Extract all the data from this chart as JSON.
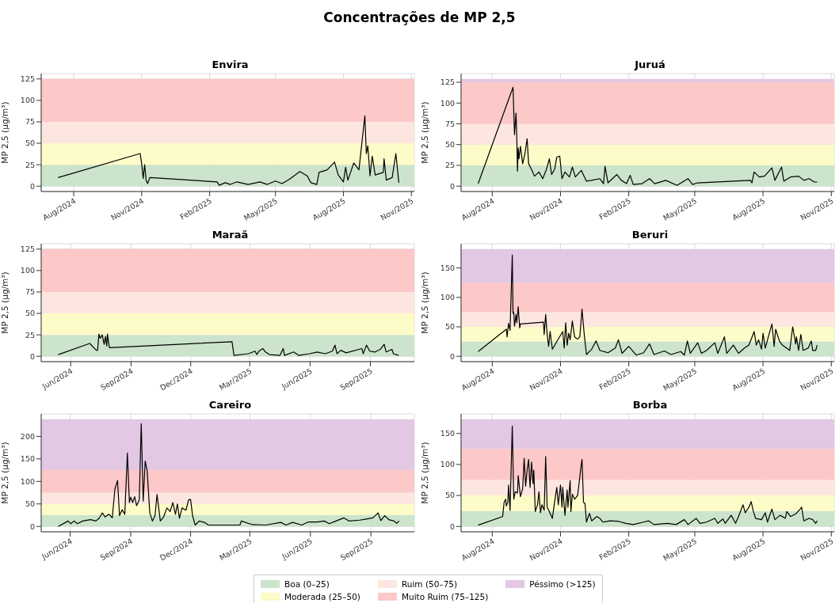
{
  "chart_data": [
    {
      "type": "other",
      "title": "Concentrações de MP 2,5"
    },
    {
      "type": "line",
      "title": "Envira",
      "ylabel": "MP 2,5 (µg/m³)",
      "color": "#000000",
      "grid": true,
      "x": [
        "2024-07-11",
        "2024-10-30",
        "2024-11-01",
        "2024-11-03",
        "2024-11-05",
        "2024-11-07",
        "2024-11-09",
        "2024-11-12",
        "2025-02-11",
        "2025-02-14",
        "2025-02-22",
        "2025-03-01",
        "2025-03-10",
        "2025-03-25",
        "2025-04-10",
        "2025-04-20",
        "2025-05-01",
        "2025-05-10",
        "2025-05-20",
        "2025-06-03",
        "2025-06-13",
        "2025-06-18",
        "2025-06-26",
        "2025-06-29",
        "2025-07-10",
        "2025-07-20",
        "2025-07-25",
        "2025-08-01",
        "2025-08-04",
        "2025-08-07",
        "2025-08-15",
        "2025-08-22",
        "2025-08-30",
        "2025-09-01",
        "2025-09-03",
        "2025-09-06",
        "2025-09-09",
        "2025-09-13",
        "2025-09-24",
        "2025-09-25",
        "2025-09-28",
        "2025-10-06",
        "2025-10-11",
        "2025-10-15"
      ],
      "values": [
        10,
        38,
        26,
        9,
        25,
        7,
        3,
        10,
        5,
        1,
        4,
        2,
        5,
        2,
        5,
        2,
        6,
        3,
        8,
        17,
        12,
        4,
        2,
        16,
        19,
        28,
        13,
        5,
        22,
        7,
        27,
        19,
        82,
        38,
        47,
        12,
        35,
        13,
        16,
        32,
        7,
        10,
        38,
        4
      ],
      "xlim": [
        "2024-06-18",
        "2025-11-05"
      ],
      "xticks": [
        {
          "value": "2024-08-01",
          "label": "Aug/2024"
        },
        {
          "value": "2024-11-01",
          "label": "Nov/2024"
        },
        {
          "value": "2025-02-01",
          "label": "Feb/2025"
        },
        {
          "value": "2025-05-01",
          "label": "May/2025"
        },
        {
          "value": "2025-08-01",
          "label": "Aug/2025"
        },
        {
          "value": "2025-11-01",
          "label": "Nov/2025"
        }
      ],
      "ylim": [
        -6.25,
        131.25
      ],
      "yticks": [
        0,
        25,
        50,
        75,
        100,
        125
      ],
      "bands": [
        {
          "axis": "y",
          "from": 0,
          "to": 25,
          "color": "#cbe4cb"
        },
        {
          "axis": "y",
          "from": 25,
          "to": 50,
          "color": "#fdfbc8"
        },
        {
          "axis": "y",
          "from": 50,
          "to": 75,
          "color": "#fde6e0"
        },
        {
          "axis": "y",
          "from": 75,
          "to": 125,
          "color": "#fdc8c8"
        }
      ]
    },
    {
      "type": "line",
      "title": "Juruá",
      "ylabel": "MP 2,5 (µg/m³)",
      "color": "#000000",
      "grid": true,
      "x": [
        "2024-07-13",
        "2024-08-29",
        "2024-08-31",
        "2024-09-02",
        "2024-09-03",
        "2024-09-04",
        "2024-09-05",
        "2024-09-06",
        "2024-09-08",
        "2024-09-11",
        "2024-09-14",
        "2024-09-17",
        "2024-09-19",
        "2024-09-23",
        "2024-09-27",
        "2024-10-03",
        "2024-10-08",
        "2024-10-13",
        "2024-10-17",
        "2024-10-20",
        "2024-10-24",
        "2024-10-27",
        "2024-10-31",
        "2024-11-03",
        "2024-11-07",
        "2024-11-13",
        "2024-11-17",
        "2024-11-21",
        "2024-11-29",
        "2024-12-06",
        "2024-12-13",
        "2024-12-24",
        "2024-12-29",
        "2024-12-31",
        "2025-01-04",
        "2025-01-16",
        "2025-01-22",
        "2025-01-29",
        "2025-02-03",
        "2025-02-07",
        "2025-02-19",
        "2025-03-01",
        "2025-03-08",
        "2025-03-23",
        "2025-04-07",
        "2025-04-22",
        "2025-04-28",
        "2025-05-05",
        "2025-07-15",
        "2025-07-17",
        "2025-07-20",
        "2025-07-27",
        "2025-08-03",
        "2025-08-13",
        "2025-08-17",
        "2025-08-26",
        "2025-08-29",
        "2025-09-07",
        "2025-09-18",
        "2025-09-25",
        "2025-10-02",
        "2025-10-09",
        "2025-10-13"
      ],
      "values": [
        3,
        119,
        62,
        88,
        62,
        18,
        46,
        33,
        48,
        27,
        39,
        57,
        27,
        20,
        12,
        17,
        9,
        20,
        33,
        14,
        20,
        35,
        36,
        9,
        17,
        11,
        23,
        11,
        19,
        6,
        7,
        9,
        3,
        24,
        4,
        14,
        7,
        3,
        13,
        2,
        3,
        9,
        3,
        7,
        1,
        9,
        2,
        4,
        7,
        4,
        17,
        11,
        12,
        22,
        7,
        23,
        6,
        11,
        12,
        7,
        9,
        5,
        5
      ],
      "xlim": [
        "2024-06-20",
        "2025-11-05"
      ],
      "xticks": [
        {
          "value": "2024-08-01",
          "label": "Aug/2024"
        },
        {
          "value": "2024-11-01",
          "label": "Nov/2024"
        },
        {
          "value": "2025-02-01",
          "label": "Feb/2025"
        },
        {
          "value": "2025-05-01",
          "label": "May/2025"
        },
        {
          "value": "2025-08-01",
          "label": "Aug/2025"
        },
        {
          "value": "2025-11-01",
          "label": "Nov/2025"
        }
      ],
      "ylim": [
        -6.45,
        135.45
      ],
      "yticks": [
        0,
        25,
        50,
        75,
        100,
        125
      ],
      "bands": [
        {
          "axis": "y",
          "from": 0,
          "to": 25,
          "color": "#cbe4cb"
        },
        {
          "axis": "y",
          "from": 25,
          "to": 50,
          "color": "#fdfbc8"
        },
        {
          "axis": "y",
          "from": 50,
          "to": 75,
          "color": "#fde6e0"
        },
        {
          "axis": "y",
          "from": 75,
          "to": 125,
          "color": "#fdc8c8"
        },
        {
          "axis": "y",
          "from": 125,
          "to": 129,
          "color": "#e2c8e2"
        }
      ]
    },
    {
      "type": "line",
      "title": "Maraã",
      "ylabel": "MP 2,5 (µg/m³)",
      "color": "#000000",
      "grid": true,
      "x": [
        "2024-05-13",
        "2024-06-30",
        "2024-07-10",
        "2024-07-12",
        "2024-07-14",
        "2024-07-16",
        "2024-07-19",
        "2024-07-22",
        "2024-07-24",
        "2024-07-26",
        "2024-07-27",
        "2024-07-30",
        "2025-02-02",
        "2025-02-05",
        "2025-02-27",
        "2025-03-09",
        "2025-03-12",
        "2025-03-15",
        "2025-03-21",
        "2025-03-25",
        "2025-03-31",
        "2025-04-16",
        "2025-04-21",
        "2025-04-23",
        "2025-05-07",
        "2025-05-15",
        "2025-05-31",
        "2025-06-12",
        "2025-06-24",
        "2025-07-05",
        "2025-07-09",
        "2025-07-12",
        "2025-07-18",
        "2025-07-26",
        "2025-08-19",
        "2025-08-21",
        "2025-08-26",
        "2025-08-31",
        "2025-09-08",
        "2025-09-16",
        "2025-09-22",
        "2025-09-25",
        "2025-10-04",
        "2025-10-06",
        "2025-10-14"
      ],
      "values": [
        2,
        15,
        7,
        7,
        26,
        21,
        25,
        14,
        23,
        12,
        26,
        10,
        17,
        1,
        3,
        6,
        2,
        6,
        9,
        5,
        2,
        1,
        9,
        1,
        5,
        1,
        3,
        5,
        3,
        6,
        13,
        3,
        7,
        4,
        9,
        3,
        13,
        6,
        5,
        8,
        14,
        5,
        8,
        3,
        1
      ],
      "xlim": [
        "2024-04-17",
        "2025-11-07"
      ],
      "xticks": [
        {
          "value": "2024-06-01",
          "label": "Jun/2024"
        },
        {
          "value": "2024-09-01",
          "label": "Sep/2024"
        },
        {
          "value": "2024-12-01",
          "label": "Dec/2024"
        },
        {
          "value": "2025-03-01",
          "label": "Mar/2025"
        },
        {
          "value": "2025-06-01",
          "label": "Jun/2025"
        },
        {
          "value": "2025-09-01",
          "label": "Sep/2025"
        }
      ],
      "ylim": [
        -6.25,
        131.25
      ],
      "yticks": [
        0,
        25,
        50,
        75,
        100,
        125
      ],
      "bands": [
        {
          "axis": "y",
          "from": 0,
          "to": 25,
          "color": "#cbe4cb"
        },
        {
          "axis": "y",
          "from": 25,
          "to": 50,
          "color": "#fdfbc8"
        },
        {
          "axis": "y",
          "from": 50,
          "to": 75,
          "color": "#fde6e0"
        },
        {
          "axis": "y",
          "from": 75,
          "to": 125,
          "color": "#fdc8c8"
        }
      ]
    },
    {
      "type": "line",
      "title": "Beruri",
      "ylabel": "MP 2,5 (µg/m³)",
      "color": "#000000",
      "grid": true,
      "x": [
        "2024-07-13",
        "2024-08-20",
        "2024-08-21",
        "2024-08-23",
        "2024-08-25",
        "2024-08-28",
        "2024-08-29",
        "2024-08-30",
        "2024-08-31",
        "2024-09-02",
        "2024-09-03",
        "2024-09-05",
        "2024-09-07",
        "2024-09-08",
        "2024-10-09",
        "2024-10-10",
        "2024-10-12",
        "2024-10-14",
        "2024-10-16",
        "2024-10-18",
        "2024-10-21",
        "2024-11-04",
        "2024-11-06",
        "2024-11-08",
        "2024-11-10",
        "2024-11-12",
        "2024-11-14",
        "2024-11-17",
        "2024-11-20",
        "2024-11-24",
        "2024-11-27",
        "2024-11-30",
        "2024-12-03",
        "2024-12-06",
        "2024-12-13",
        "2024-12-19",
        "2024-12-24",
        "2025-01-04",
        "2025-01-14",
        "2025-01-18",
        "2025-01-23",
        "2025-02-01",
        "2025-02-11",
        "2025-02-21",
        "2025-03-01",
        "2025-03-07",
        "2025-03-21",
        "2025-03-30",
        "2025-04-12",
        "2025-04-17",
        "2025-04-21",
        "2025-04-25",
        "2025-05-05",
        "2025-05-10",
        "2025-05-17",
        "2025-05-28",
        "2025-06-01",
        "2025-06-10",
        "2025-06-13",
        "2025-06-22",
        "2025-06-29",
        "2025-07-07",
        "2025-07-13",
        "2025-07-20",
        "2025-07-23",
        "2025-07-26",
        "2025-07-30",
        "2025-08-01",
        "2025-08-04",
        "2025-08-13",
        "2025-08-16",
        "2025-08-18",
        "2025-08-23",
        "2025-08-27",
        "2025-09-06",
        "2025-09-10",
        "2025-09-14",
        "2025-09-15",
        "2025-09-18",
        "2025-09-21",
        "2025-09-24",
        "2025-10-01",
        "2025-10-05",
        "2025-10-07",
        "2025-10-11",
        "2025-10-13"
      ],
      "values": [
        8,
        46,
        33,
        56,
        44,
        172,
        73,
        75,
        51,
        71,
        57,
        84,
        48,
        55,
        58,
        37,
        71,
        37,
        17,
        42,
        12,
        42,
        14,
        57,
        19,
        39,
        28,
        60,
        33,
        29,
        33,
        80,
        37,
        3,
        12,
        26,
        10,
        6,
        14,
        28,
        5,
        17,
        2,
        6,
        21,
        3,
        9,
        3,
        8,
        2,
        26,
        5,
        23,
        5,
        10,
        23,
        5,
        33,
        5,
        19,
        5,
        14,
        19,
        42,
        19,
        28,
        12,
        39,
        14,
        55,
        17,
        46,
        26,
        19,
        10,
        50,
        21,
        33,
        10,
        37,
        10,
        14,
        26,
        10,
        10,
        19
      ],
      "xlim": [
        "2024-06-20",
        "2025-11-05"
      ],
      "xticks": [
        {
          "value": "2024-08-01",
          "label": "Aug/2024"
        },
        {
          "value": "2024-11-01",
          "label": "Nov/2024"
        },
        {
          "value": "2025-02-01",
          "label": "Feb/2025"
        },
        {
          "value": "2025-05-01",
          "label": "May/2025"
        },
        {
          "value": "2025-08-01",
          "label": "Aug/2025"
        },
        {
          "value": "2025-11-01",
          "label": "Nov/2025"
        }
      ],
      "ylim": [
        -9.1,
        191.1
      ],
      "yticks": [
        0,
        50,
        100,
        150
      ],
      "bands": [
        {
          "axis": "y",
          "from": 0,
          "to": 25,
          "color": "#cbe4cb"
        },
        {
          "axis": "y",
          "from": 25,
          "to": 50,
          "color": "#fdfbc8"
        },
        {
          "axis": "y",
          "from": 50,
          "to": 75,
          "color": "#fde6e0"
        },
        {
          "axis": "y",
          "from": 75,
          "to": 125,
          "color": "#fdc8c8"
        },
        {
          "axis": "y",
          "from": 125,
          "to": 182,
          "color": "#e2c8e2"
        }
      ]
    },
    {
      "type": "line",
      "title": "Careiro",
      "ylabel": "MP 2,5 (µg/m³)",
      "color": "#000000",
      "grid": true,
      "x": [
        "2024-05-14",
        "2024-05-29",
        "2024-06-02",
        "2024-06-07",
        "2024-06-12",
        "2024-06-20",
        "2024-07-02",
        "2024-07-10",
        "2024-07-15",
        "2024-07-20",
        "2024-07-24",
        "2024-07-30",
        "2024-08-04",
        "2024-08-08",
        "2024-08-12",
        "2024-08-15",
        "2024-08-19",
        "2024-08-23",
        "2024-08-27",
        "2024-08-30",
        "2024-09-01",
        "2024-09-04",
        "2024-09-07",
        "2024-09-10",
        "2024-09-14",
        "2024-09-17",
        "2024-09-20",
        "2024-09-23",
        "2024-09-26",
        "2024-09-30",
        "2024-10-04",
        "2024-10-08",
        "2024-10-11",
        "2024-10-16",
        "2024-10-21",
        "2024-10-26",
        "2024-10-31",
        "2024-11-04",
        "2024-11-08",
        "2024-11-11",
        "2024-11-14",
        "2024-11-18",
        "2024-11-24",
        "2024-11-28",
        "2024-12-01",
        "2024-12-04",
        "2024-12-08",
        "2024-12-14",
        "2024-12-22",
        "2024-12-28",
        "2025-02-14",
        "2025-02-16",
        "2025-03-05",
        "2025-03-25",
        "2025-04-17",
        "2025-04-25",
        "2025-05-05",
        "2025-05-19",
        "2025-05-29",
        "2025-06-12",
        "2025-06-22",
        "2025-06-30",
        "2025-07-10",
        "2025-07-22",
        "2025-07-30",
        "2025-08-15",
        "2025-08-27",
        "2025-09-04",
        "2025-09-12",
        "2025-09-16",
        "2025-09-22",
        "2025-09-28",
        "2025-10-06",
        "2025-10-10",
        "2025-10-14"
      ],
      "values": [
        0,
        12,
        6,
        12,
        6,
        12,
        15,
        12,
        18,
        30,
        21,
        27,
        19,
        83,
        102,
        24,
        37,
        27,
        163,
        53,
        65,
        53,
        66,
        46,
        59,
        228,
        56,
        145,
        124,
        30,
        12,
        24,
        71,
        12,
        21,
        41,
        33,
        53,
        27,
        50,
        18,
        41,
        36,
        59,
        60,
        24,
        3,
        12,
        9,
        3,
        3,
        12,
        4,
        3,
        9,
        3,
        9,
        3,
        10,
        10,
        12,
        6,
        12,
        19,
        12,
        14,
        17,
        19,
        30,
        13,
        24,
        15,
        12,
        7,
        12
      ],
      "xlim": [
        "2024-04-18",
        "2025-11-06"
      ],
      "xticks": [
        {
          "value": "2024-06-01",
          "label": "Jun/2024"
        },
        {
          "value": "2024-09-01",
          "label": "Sep/2024"
        },
        {
          "value": "2024-12-01",
          "label": "Dec/2024"
        },
        {
          "value": "2025-03-01",
          "label": "Mar/2025"
        },
        {
          "value": "2025-06-01",
          "label": "Jun/2025"
        },
        {
          "value": "2025-09-01",
          "label": "Sep/2025"
        }
      ],
      "ylim": [
        -11.9,
        249.9
      ],
      "yticks": [
        0,
        50,
        100,
        150,
        200
      ],
      "bands": [
        {
          "axis": "y",
          "from": 0,
          "to": 25,
          "color": "#cbe4cb"
        },
        {
          "axis": "y",
          "from": 25,
          "to": 50,
          "color": "#fdfbc8"
        },
        {
          "axis": "y",
          "from": 50,
          "to": 75,
          "color": "#fde6e0"
        },
        {
          "axis": "y",
          "from": 75,
          "to": 125,
          "color": "#fdc8c8"
        },
        {
          "axis": "y",
          "from": 125,
          "to": 238,
          "color": "#e2c8e2"
        }
      ]
    },
    {
      "type": "line",
      "title": "Borba",
      "ylabel": "MP 2,5 (µg/m³)",
      "color": "#000000",
      "grid": true,
      "legend": "bottom",
      "x": [
        "2024-07-13",
        "2024-08-15",
        "2024-08-17",
        "2024-08-19",
        "2024-08-20",
        "2024-08-22",
        "2024-08-23",
        "2024-08-25",
        "2024-08-28",
        "2024-08-30",
        "2024-09-01",
        "2024-09-04",
        "2024-09-05",
        "2024-09-08",
        "2024-09-11",
        "2024-09-13",
        "2024-09-15",
        "2024-09-17",
        "2024-09-19",
        "2024-09-21",
        "2024-09-23",
        "2024-09-25",
        "2024-09-26",
        "2024-09-28",
        "2024-10-01",
        "2024-10-03",
        "2024-10-05",
        "2024-10-07",
        "2024-10-10",
        "2024-10-12",
        "2024-10-14",
        "2024-10-17",
        "2024-10-21",
        "2024-10-24",
        "2024-10-27",
        "2024-10-29",
        "2024-11-01",
        "2024-11-03",
        "2024-11-04",
        "2024-11-07",
        "2024-11-10",
        "2024-11-11",
        "2024-11-14",
        "2024-11-15",
        "2024-11-17",
        "2024-11-20",
        "2024-11-24",
        "2024-11-26",
        "2024-11-28",
        "2024-11-30",
        "2024-12-02",
        "2024-12-04",
        "2024-12-06",
        "2024-12-10",
        "2024-12-13",
        "2024-12-20",
        "2024-12-24",
        "2024-12-28",
        "2025-01-07",
        "2025-01-19",
        "2025-01-28",
        "2025-02-07",
        "2025-02-21",
        "2025-02-28",
        "2025-03-07",
        "2025-03-25",
        "2025-04-06",
        "2025-04-17",
        "2025-04-22",
        "2025-05-03",
        "2025-05-08",
        "2025-05-17",
        "2025-05-28",
        "2025-06-01",
        "2025-06-08",
        "2025-06-11",
        "2025-06-19",
        "2025-06-25",
        "2025-06-29",
        "2025-07-05",
        "2025-07-08",
        "2025-07-13",
        "2025-07-16",
        "2025-07-19",
        "2025-07-22",
        "2025-07-30",
        "2025-08-04",
        "2025-08-07",
        "2025-08-13",
        "2025-08-17",
        "2025-08-24",
        "2025-08-31",
        "2025-09-02",
        "2025-09-07",
        "2025-09-14",
        "2025-09-20",
        "2025-09-22",
        "2025-09-25",
        "2025-10-02",
        "2025-10-07",
        "2025-10-11",
        "2025-10-13"
      ],
      "values": [
        2,
        16,
        39,
        44,
        33,
        39,
        67,
        26,
        162,
        44,
        56,
        54,
        82,
        48,
        61,
        110,
        65,
        91,
        108,
        63,
        104,
        69,
        91,
        24,
        35,
        56,
        22,
        35,
        26,
        113,
        31,
        24,
        13,
        39,
        63,
        35,
        67,
        31,
        63,
        18,
        59,
        31,
        74,
        24,
        52,
        44,
        50,
        69,
        91,
        108,
        39,
        37,
        7,
        21,
        9,
        16,
        13,
        7,
        9,
        8,
        5,
        3,
        7,
        9,
        3,
        5,
        3,
        11,
        3,
        13,
        5,
        7,
        13,
        5,
        12,
        5,
        18,
        5,
        16,
        35,
        22,
        31,
        40,
        24,
        13,
        11,
        22,
        7,
        28,
        11,
        18,
        13,
        24,
        16,
        20,
        28,
        31,
        9,
        13,
        11,
        5,
        9
      ],
      "xlim": [
        "2024-06-20",
        "2025-11-05"
      ],
      "xticks": [
        {
          "value": "2024-08-01",
          "label": "Aug/2024"
        },
        {
          "value": "2024-11-01",
          "label": "Nov/2024"
        },
        {
          "value": "2025-02-01",
          "label": "Feb/2025"
        },
        {
          "value": "2025-05-01",
          "label": "May/2025"
        },
        {
          "value": "2025-08-01",
          "label": "Aug/2025"
        },
        {
          "value": "2025-11-01",
          "label": "Nov/2025"
        }
      ],
      "ylim": [
        -8.65,
        181.65
      ],
      "yticks": [
        0,
        50,
        100,
        150
      ],
      "bands": [
        {
          "axis": "y",
          "from": 0,
          "to": 25,
          "color": "#cbe4cb",
          "label": "Boa (0–25)"
        },
        {
          "axis": "y",
          "from": 25,
          "to": 50,
          "color": "#fdfbc8",
          "label": "Moderada (25–50)"
        },
        {
          "axis": "y",
          "from": 50,
          "to": 75,
          "color": "#fde6e0",
          "label": "Ruim (50–75)"
        },
        {
          "axis": "y",
          "from": 75,
          "to": 125,
          "color": "#fdc8c8",
          "label": "Muito Ruim (75–125)"
        },
        {
          "axis": "y",
          "from": 125,
          "to": 173,
          "color": "#e2c8e2",
          "label": "Péssimo (>125)"
        }
      ]
    }
  ]
}
